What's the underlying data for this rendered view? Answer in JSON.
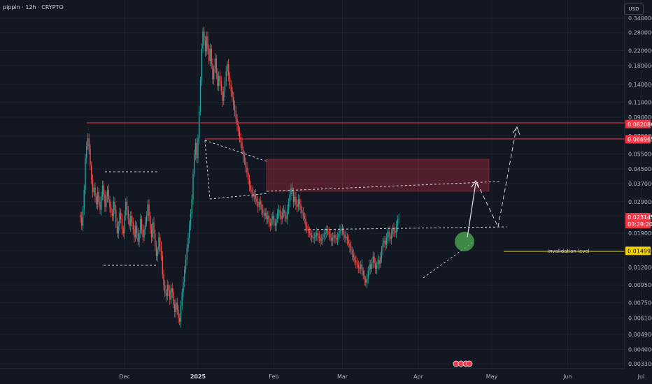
{
  "title": "pippin · 12h · CRYPTO",
  "currency": "USD",
  "colors": {
    "up": "#26a69a",
    "down": "#ef5350",
    "resistance": "#f23645",
    "invalidation": "#f5d300",
    "zone": "#f23645",
    "target_circle": "#4caf50"
  },
  "chart_data": {
    "type": "candlestick",
    "log_scale": true,
    "y_ticks": [
      0.0033,
      0.004,
      0.0049,
      0.0061,
      0.0075,
      0.0095,
      0.012,
      0.015,
      0.019,
      0.024,
      0.029,
      0.037,
      0.045,
      0.055,
      0.07,
      0.09,
      0.11,
      0.14,
      0.18,
      0.22,
      0.28,
      0.34
    ],
    "y_tick_labels": [
      "0.003300",
      "0.004000",
      "0.004900",
      "0.006100",
      "0.007500",
      "0.009500",
      "0.012000",
      "0.015000",
      "0.019000",
      "0.024000",
      "0.029000",
      "0.037000",
      "0.045000",
      "0.055000",
      "0.070000",
      "0.090000",
      "0.110000",
      "0.140000",
      "0.180000",
      "0.220000",
      "0.280000",
      "0.340000"
    ],
    "x_ticks": [
      {
        "label": "Dec",
        "bold": false,
        "index": 36
      },
      {
        "label": "2025",
        "bold": true,
        "index": 96
      },
      {
        "label": "Feb",
        "bold": false,
        "index": 158
      },
      {
        "label": "Mar",
        "bold": false,
        "index": 214
      },
      {
        "label": "Apr",
        "bold": false,
        "index": 276
      },
      {
        "label": "May",
        "bold": false,
        "index": 336
      },
      {
        "label": "Jun",
        "bold": false,
        "index": 398
      },
      {
        "label": "Jul",
        "bold": false,
        "index": 458
      }
    ],
    "series": [
      {
        "name": "pippin",
        "close": [
          0.0235,
          0.021,
          0.026,
          0.034,
          0.052,
          0.061,
          0.068,
          0.059,
          0.047,
          0.039,
          0.033,
          0.035,
          0.031,
          0.028,
          0.033,
          0.029,
          0.026,
          0.031,
          0.036,
          0.032,
          0.027,
          0.031,
          0.034,
          0.03,
          0.027,
          0.025,
          0.024,
          0.029,
          0.026,
          0.022,
          0.019,
          0.021,
          0.025,
          0.023,
          0.02,
          0.019,
          0.024,
          0.029,
          0.026,
          0.023,
          0.021,
          0.024,
          0.022,
          0.02,
          0.018,
          0.021,
          0.019,
          0.017,
          0.019,
          0.023,
          0.02,
          0.018,
          0.02,
          0.022,
          0.024,
          0.028,
          0.024,
          0.02,
          0.018,
          0.022,
          0.019,
          0.016,
          0.014,
          0.015,
          0.018,
          0.016,
          0.014,
          0.011,
          0.0095,
          0.0085,
          0.0082,
          0.0095,
          0.0088,
          0.0078,
          0.0091,
          0.0086,
          0.0073,
          0.0066,
          0.0075,
          0.0068,
          0.0061,
          0.0058,
          0.0072,
          0.0086,
          0.0099,
          0.0117,
          0.0133,
          0.0156,
          0.0178,
          0.0212,
          0.0246,
          0.0301,
          0.0422,
          0.0546,
          0.0638,
          0.052,
          0.068,
          0.097,
          0.148,
          0.226,
          0.284,
          0.252,
          0.218,
          0.266,
          0.226,
          0.192,
          0.226,
          0.184,
          0.15,
          0.172,
          0.198,
          0.162,
          0.137,
          0.157,
          0.147,
          0.128,
          0.112,
          0.127,
          0.146,
          0.167,
          0.183,
          0.157,
          0.138,
          0.128,
          0.118,
          0.106,
          0.098,
          0.088,
          0.081,
          0.074,
          0.069,
          0.064,
          0.058,
          0.053,
          0.05,
          0.046,
          0.043,
          0.039,
          0.036,
          0.034,
          0.033,
          0.031,
          0.032,
          0.03,
          0.029,
          0.027,
          0.029,
          0.028,
          0.026,
          0.025,
          0.024,
          0.025,
          0.023,
          0.024,
          0.022,
          0.021,
          0.023,
          0.024,
          0.022,
          0.021,
          0.023,
          0.025,
          0.026,
          0.024,
          0.023,
          0.025,
          0.026,
          0.024,
          0.023,
          0.026,
          0.029,
          0.032,
          0.035,
          0.033,
          0.029,
          0.031,
          0.028,
          0.027,
          0.03,
          0.028,
          0.026,
          0.025,
          0.024,
          0.023,
          0.021,
          0.02,
          0.0195,
          0.019,
          0.0185,
          0.018,
          0.0178,
          0.018,
          0.0185,
          0.019,
          0.0182,
          0.0178,
          0.0172,
          0.0175,
          0.018,
          0.0188,
          0.0192,
          0.0197,
          0.0195,
          0.0188,
          0.018,
          0.0172,
          0.0178,
          0.0185,
          0.0178,
          0.0175,
          0.018,
          0.019,
          0.0198,
          0.0202,
          0.0194,
          0.0187,
          0.0178,
          0.0181,
          0.0173,
          0.0166,
          0.0158,
          0.015,
          0.0143,
          0.0138,
          0.0132,
          0.0128,
          0.0124,
          0.012,
          0.0118,
          0.0125,
          0.0115,
          0.0108,
          0.0102,
          0.0098,
          0.0103,
          0.0115,
          0.0125,
          0.0118,
          0.0128,
          0.0139,
          0.0127,
          0.0118,
          0.0124,
          0.0133,
          0.0126,
          0.0137,
          0.0152,
          0.0166,
          0.0172,
          0.0163,
          0.0178,
          0.0194,
          0.0182,
          0.0176,
          0.0188,
          0.0204,
          0.0196,
          0.0191,
          0.0209,
          0.0228,
          0.0231
        ]
      }
    ],
    "levels": [
      {
        "value": 0.082086,
        "label": "0.082086",
        "color": "#f23645"
      },
      {
        "value": 0.066965,
        "label": "0.066965",
        "color": "#f23645"
      },
      {
        "value": 0.014998,
        "label": "0.014998",
        "color": "#f5d300"
      }
    ],
    "current_price": {
      "value": 0.023145,
      "label": "0.023145",
      "countdown": "09:29:20"
    },
    "annotations": [
      {
        "text": "invalidation level"
      }
    ]
  }
}
